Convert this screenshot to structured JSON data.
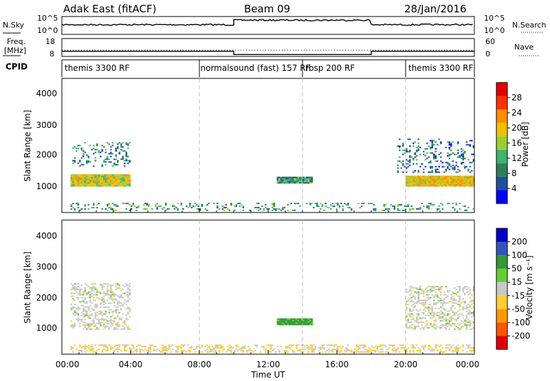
{
  "header": {
    "station": "Adak East (fitACF)",
    "beam": "Beam 09",
    "date": "28/Jan/2016"
  },
  "noise_panel": {
    "left_label": "N.Sky",
    "right_label": "N.Search",
    "left_ticks": [
      "10^5",
      "10^0"
    ],
    "right_ticks": [
      "10^5",
      "10^0"
    ]
  },
  "freq_panel": {
    "left_label_1": "Freq.",
    "left_label_2": "[MHz]",
    "right_label": "Nave",
    "left_ticks": [
      "18",
      "8"
    ],
    "right_ticks": [
      "60",
      "0"
    ]
  },
  "cpid": {
    "label": "CPID",
    "segments": [
      {
        "name": "themis 3300 RF",
        "start_hour": 0,
        "end_hour": 7.9
      },
      {
        "name": "normalsound (fast) 157 RF",
        "start_hour": 7.9,
        "end_hour": 14
      },
      {
        "name": "rbsp 200 RF",
        "start_hour": 14,
        "end_hour": 20
      },
      {
        "name": "themis 3300 RF",
        "start_hour": 20,
        "end_hour": 24
      }
    ]
  },
  "power_panel": {
    "ylabel": "Slant Range [km]",
    "cbar_label": "Power [dB]",
    "cbar_ticks": [
      "28",
      "24",
      "20",
      "16",
      "12",
      "8",
      "4"
    ],
    "yticks": [
      "4000",
      "3000",
      "2000",
      "1000"
    ]
  },
  "velocity_panel": {
    "ylabel": "Slant Range [km]",
    "cbar_label": "Velocity [m s⁻¹]",
    "cbar_ticks": [
      "200",
      "100",
      "50",
      "15",
      "-15",
      "-50",
      "-100",
      "-200"
    ],
    "yticks": [
      "4000",
      "3000",
      "2000",
      "1000"
    ]
  },
  "xaxis": {
    "label": "Time UT",
    "ticks": [
      "00:00",
      "04:00",
      "08:00",
      "12:00",
      "16:00",
      "20:00",
      "00:00"
    ]
  },
  "colors": {
    "power_scale": [
      "#0000ff",
      "#1e4fa0",
      "#2e7d5a",
      "#3cb371",
      "#9acd32",
      "#f0c000",
      "#ff8c00",
      "#ff3000",
      "#e00000"
    ],
    "velocity_scale": [
      "#e00000",
      "#ff5500",
      "#ff9900",
      "#ffcc33",
      "#c8c8c8",
      "#66cc33",
      "#339933",
      "#3355bb",
      "#0000cc"
    ]
  },
  "chart_data": {
    "type": "heatmap",
    "title": "Adak East (fitACF) Beam 09 28/Jan/2016",
    "xlabel": "Time UT",
    "ylabel": "Slant Range [km]",
    "xlim_hours": [
      0,
      24
    ],
    "ylim_km": [
      200,
      4600
    ],
    "schedule_change_hours": [
      8,
      14,
      20
    ],
    "noise_sky_levels": [
      {
        "start_hour": 0,
        "end_hour": 10,
        "level": 0.55
      },
      {
        "start_hour": 10,
        "end_hour": 18,
        "level": 0.85
      },
      {
        "start_hour": 18,
        "end_hour": 24,
        "level": 0.55
      }
    ],
    "frequency_mhz": [
      {
        "start_hour": 0,
        "end_hour": 10,
        "value": 10.5
      },
      {
        "start_hour": 10,
        "end_hour": 18,
        "value": 8.3
      },
      {
        "start_hour": 18,
        "end_hour": 24,
        "value": 10.5
      }
    ],
    "power_clusters": [
      {
        "start_hour": 0.5,
        "end_hour": 4.0,
        "r_lo_km": 1050,
        "r_hi_km": 1450,
        "db": 18
      },
      {
        "start_hour": 0.6,
        "end_hour": 4.0,
        "r_lo_km": 1700,
        "r_hi_km": 2500,
        "db": 8
      },
      {
        "start_hour": 12.5,
        "end_hour": 14.5,
        "r_lo_km": 1150,
        "r_hi_km": 1350,
        "db": 9
      },
      {
        "start_hour": 20.0,
        "end_hour": 24.0,
        "r_lo_km": 1050,
        "r_hi_km": 1400,
        "db": 20
      },
      {
        "start_hour": 19.5,
        "end_hour": 24.0,
        "r_lo_km": 1500,
        "r_hi_km": 2600,
        "db": 6
      },
      {
        "start_hour": 0.5,
        "end_hour": 24.0,
        "r_lo_km": 250,
        "r_hi_km": 500,
        "db": 10
      }
    ],
    "velocity_clusters": [
      {
        "start_hour": 0.5,
        "end_hour": 4.0,
        "r_lo_km": 1000,
        "r_hi_km": 2500,
        "ms": 0
      },
      {
        "start_hour": 12.5,
        "end_hour": 14.5,
        "r_lo_km": 1150,
        "r_hi_km": 1350,
        "ms": 60
      },
      {
        "start_hour": 20.0,
        "end_hour": 24.0,
        "r_lo_km": 1000,
        "r_hi_km": 2400,
        "ms": 0
      },
      {
        "start_hour": 0.5,
        "end_hour": 24.0,
        "r_lo_km": 250,
        "r_hi_km": 500,
        "ms": -20
      }
    ]
  }
}
